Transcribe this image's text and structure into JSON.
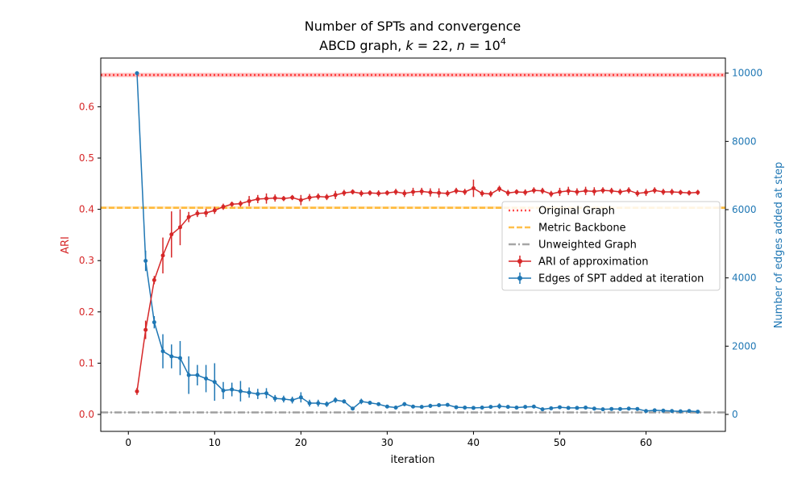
{
  "chart_data": {
    "type": "line",
    "title_line1": "Number of SPTs and convergence",
    "title_line2": "ABCD graph, k = 22, n = 10^4",
    "title_line2_parts": {
      "prefix": "ABCD graph, ",
      "k_symbol": "k",
      "k_value": " = 22, ",
      "n_symbol": "n",
      "n_value": " = 10",
      "n_exponent": "4"
    },
    "xlabel": "iteration",
    "ylabel_left": "ARI",
    "ylabel_right": "Number of edges added at step",
    "xlim": [
      -3.2,
      69.2
    ],
    "ylim_left": [
      -0.033,
      0.695
    ],
    "ylim_right": [
      -497,
      10442
    ],
    "x_ticks": [
      "0",
      "10",
      "20",
      "30",
      "40",
      "50",
      "60"
    ],
    "y_left_ticks": [
      "0.0",
      "0.1",
      "0.2",
      "0.3",
      "0.4",
      "0.5",
      "0.6"
    ],
    "y_right_ticks": [
      "0",
      "2000",
      "4000",
      "6000",
      "8000",
      "10000"
    ],
    "colors": {
      "ari": "#d62728",
      "edges": "#1f77b4",
      "original": "#ff0000",
      "metric": "#ffa500",
      "unweighted": "#808080",
      "left_axis": "#d62728",
      "right_axis": "#1f77b4"
    },
    "reference_lines": [
      {
        "name": "Original Graph",
        "value": 0.662,
        "band": [
          0.658,
          0.666
        ],
        "style": "dotted"
      },
      {
        "name": "Metric Backbone",
        "value": 0.403,
        "band": [
          0.401,
          0.406
        ],
        "style": "dashed"
      },
      {
        "name": "Unweighted Graph",
        "value": 0.004,
        "band": [
          0.003,
          0.005
        ],
        "style": "dashdot"
      }
    ],
    "series": [
      {
        "name": "ARI of approximation",
        "axis": "left",
        "x": [
          1,
          2,
          3,
          4,
          5,
          6,
          7,
          8,
          9,
          10,
          11,
          12,
          13,
          14,
          15,
          16,
          17,
          18,
          19,
          20,
          21,
          22,
          23,
          24,
          25,
          26,
          27,
          28,
          29,
          30,
          31,
          32,
          33,
          34,
          35,
          36,
          37,
          38,
          39,
          40,
          41,
          42,
          43,
          44,
          45,
          46,
          47,
          48,
          49,
          50,
          51,
          52,
          53,
          54,
          55,
          56,
          57,
          58,
          59,
          60,
          61,
          62,
          63,
          64,
          65,
          66
        ],
        "y": [
          0.045,
          0.165,
          0.262,
          0.31,
          0.351,
          0.365,
          0.385,
          0.392,
          0.393,
          0.398,
          0.405,
          0.41,
          0.411,
          0.416,
          0.42,
          0.421,
          0.422,
          0.421,
          0.423,
          0.418,
          0.423,
          0.425,
          0.424,
          0.428,
          0.432,
          0.434,
          0.431,
          0.432,
          0.431,
          0.432,
          0.434,
          0.431,
          0.434,
          0.435,
          0.433,
          0.432,
          0.431,
          0.436,
          0.434,
          0.441,
          0.431,
          0.43,
          0.44,
          0.432,
          0.434,
          0.433,
          0.437,
          0.436,
          0.43,
          0.434,
          0.436,
          0.434,
          0.436,
          0.435,
          0.437,
          0.436,
          0.434,
          0.437,
          0.431,
          0.433,
          0.437,
          0.434,
          0.434,
          0.433,
          0.432,
          0.433
        ],
        "err": [
          0.007,
          0.018,
          0.008,
          0.035,
          0.045,
          0.035,
          0.01,
          0.007,
          0.008,
          0.007,
          0.006,
          0.005,
          0.006,
          0.01,
          0.008,
          0.01,
          0.007,
          0.005,
          0.005,
          0.01,
          0.007,
          0.006,
          0.006,
          0.008,
          0.006,
          0.005,
          0.006,
          0.005,
          0.006,
          0.005,
          0.006,
          0.007,
          0.008,
          0.007,
          0.008,
          0.009,
          0.006,
          0.006,
          0.006,
          0.017,
          0.006,
          0.006,
          0.006,
          0.006,
          0.005,
          0.006,
          0.006,
          0.006,
          0.006,
          0.008,
          0.008,
          0.007,
          0.008,
          0.008,
          0.006,
          0.006,
          0.006,
          0.006,
          0.006,
          0.007,
          0.006,
          0.006,
          0.006,
          0.005,
          0.005,
          0.005
        ]
      },
      {
        "name": "Edges of SPT added at iteration",
        "axis": "right",
        "x": [
          1,
          2,
          3,
          4,
          5,
          6,
          7,
          8,
          9,
          10,
          11,
          12,
          13,
          14,
          15,
          16,
          17,
          18,
          19,
          20,
          21,
          22,
          23,
          24,
          25,
          26,
          27,
          28,
          29,
          30,
          31,
          32,
          33,
          34,
          35,
          36,
          37,
          38,
          39,
          40,
          41,
          42,
          43,
          44,
          45,
          46,
          47,
          48,
          49,
          50,
          51,
          52,
          53,
          54,
          55,
          56,
          57,
          58,
          59,
          60,
          61,
          62,
          63,
          64,
          65,
          66
        ],
        "y": [
          10000,
          4500,
          2700,
          1850,
          1700,
          1650,
          1150,
          1150,
          1050,
          950,
          700,
          730,
          680,
          640,
          600,
          620,
          470,
          450,
          420,
          500,
          330,
          330,
          300,
          420,
          380,
          170,
          380,
          340,
          300,
          230,
          200,
          300,
          230,
          220,
          250,
          270,
          280,
          210,
          200,
          190,
          200,
          220,
          240,
          220,
          200,
          220,
          230,
          150,
          180,
          210,
          190,
          190,
          200,
          170,
          150,
          160,
          160,
          170,
          160,
          100,
          120,
          110,
          100,
          90,
          100,
          80
        ],
        "err": [
          50,
          300,
          180,
          500,
          350,
          500,
          550,
          300,
          400,
          550,
          250,
          200,
          300,
          150,
          150,
          150,
          100,
          100,
          100,
          150,
          100,
          100,
          80,
          80,
          60,
          50,
          80,
          60,
          50,
          50,
          50,
          60,
          50,
          50,
          60,
          50,
          50,
          50,
          50,
          50,
          50,
          50,
          80,
          50,
          50,
          50,
          50,
          40,
          40,
          50,
          40,
          40,
          40,
          40,
          40,
          40,
          40,
          40,
          40,
          30,
          30,
          30,
          30,
          30,
          40,
          40
        ]
      }
    ],
    "legend": {
      "position": "center-right",
      "entries": [
        "Original Graph",
        "Metric Backbone",
        "Unweighted Graph",
        "ARI of approximation",
        "Edges of SPT added at iteration"
      ]
    },
    "grid": false
  }
}
